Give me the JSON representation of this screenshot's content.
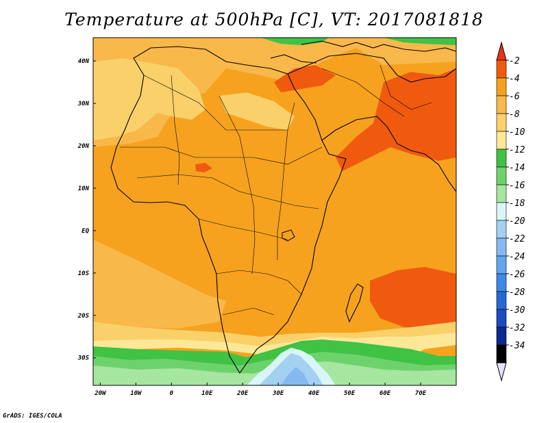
{
  "title": "Temperature at 500hPa [C], VT: 2017081818",
  "credit": "GrADS: IGES/COLA",
  "map": {
    "lon_ticks": [
      {
        "value": -20,
        "label": "20W"
      },
      {
        "value": -10,
        "label": "10W"
      },
      {
        "value": 0,
        "label": "0"
      },
      {
        "value": 10,
        "label": "10E"
      },
      {
        "value": 20,
        "label": "20E"
      },
      {
        "value": 30,
        "label": "30E"
      },
      {
        "value": 40,
        "label": "40E"
      },
      {
        "value": 50,
        "label": "50E"
      },
      {
        "value": 60,
        "label": "60E"
      },
      {
        "value": 70,
        "label": "70E"
      }
    ],
    "lat_ticks": [
      {
        "value": 40,
        "label": "40N"
      },
      {
        "value": 30,
        "label": "30N"
      },
      {
        "value": 20,
        "label": "20N"
      },
      {
        "value": 10,
        "label": "10N"
      },
      {
        "value": 0,
        "label": "EQ"
      },
      {
        "value": -10,
        "label": "10S"
      },
      {
        "value": -20,
        "label": "20S"
      },
      {
        "value": -30,
        "label": "30S"
      }
    ],
    "lon_range": [
      -22,
      80
    ],
    "lat_range": [
      -36.5,
      45.5
    ],
    "background_color": "#f6a21e"
  },
  "colorbar": {
    "levels": [
      {
        "label": "-2",
        "color": "#f05a0f"
      },
      {
        "label": "-4",
        "color": "#f6a21e"
      },
      {
        "label": "-6",
        "color": "#f8b84a"
      },
      {
        "label": "-8",
        "color": "#fad06a"
      },
      {
        "label": "-10",
        "color": "#fde898"
      },
      {
        "label": "-12",
        "color": "#40c244"
      },
      {
        "label": "-14",
        "color": "#6ed26c"
      },
      {
        "label": "-16",
        "color": "#a6e6a0"
      },
      {
        "label": "-18",
        "color": "#d8f6f8"
      },
      {
        "label": "-20",
        "color": "#a4d0f2"
      },
      {
        "label": "-22",
        "color": "#84baf0"
      },
      {
        "label": "-24",
        "color": "#62a6ee"
      },
      {
        "label": "-26",
        "color": "#3c8ae4"
      },
      {
        "label": "-28",
        "color": "#2868d4"
      },
      {
        "label": "-30",
        "color": "#1a4cc0"
      },
      {
        "label": "-32",
        "color": "#0c2a8e"
      },
      {
        "label": "-34",
        "color": "#000000"
      }
    ],
    "top_color": "#e8360e",
    "bottom_color": "#e4e0f8"
  }
}
